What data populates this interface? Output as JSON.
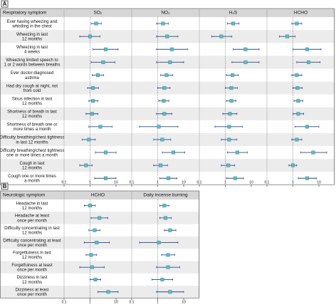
{
  "chart_data": [
    {
      "type": "forest",
      "panel_label": "A",
      "row_header": "Respiratory symptom",
      "categories": [
        "Ever having wheezing and\nwhistling in the chest",
        "Wheezing in last\n12 months",
        "Wheezing in last\n4 weeks",
        "Wheezing limited speech to\n1 or 2 words between breaths",
        "Ever doctor-diagnosed\nasthma",
        "Had dry cough at night, not\nfrom cold",
        "Sinus infection in last\n12 months",
        "Shortness of breath in last\n12 months",
        "Shortness of breath one or\nmore times a month",
        "Difficulty breathing/chest tightness\nin last 12 months",
        "Difficulty breathing/chest tightness\none or more times a month",
        "Cough in last\n12 months",
        "Cough one or more times\na month"
      ],
      "series": [
        {
          "name": "SO₂",
          "values": [
            1.7,
            1.0,
            4.0,
            3.2,
            2.0,
            1.3,
            1.3,
            1.2,
            2.5,
            0.9,
            4.0,
            0.7,
            4.0
          ],
          "lower": [
            1.1,
            0.4,
            1.3,
            1.1,
            1.2,
            0.8,
            0.9,
            0.7,
            0.9,
            0.5,
            1.6,
            0.4,
            1.5
          ],
          "upper": [
            2.7,
            2.4,
            12,
            9,
            3.3,
            2.1,
            2.0,
            2.0,
            7,
            1.6,
            10,
            1.2,
            10
          ]
        },
        {
          "name": "NO₂",
          "values": [
            1.6,
            2.3,
            3.5,
            3.0,
            2.2,
            1.8,
            1.7,
            1.8,
            1.1,
            1.5,
            4.0,
            1.3,
            2.6
          ],
          "lower": [
            0.9,
            0.9,
            0.9,
            0.9,
            1.3,
            1.0,
            1.1,
            0.9,
            0.2,
            0.7,
            1.5,
            0.7,
            1.2
          ],
          "upper": [
            2.6,
            6,
            14,
            10,
            3.8,
            3.0,
            2.7,
            3.5,
            6,
            3.2,
            11,
            2.4,
            5.5
          ]
        },
        {
          "name": "H₂S",
          "values": [
            2.0,
            0.7,
            6.0,
            6.0,
            1.9,
            1.7,
            1.7,
            1.5,
            1.4,
            1.4,
            2.9,
            1.3,
            2.4
          ],
          "lower": [
            1.2,
            0.3,
            2.0,
            1.8,
            1.1,
            1.0,
            1.1,
            0.8,
            0.4,
            0.7,
            1.2,
            0.7,
            1.1
          ],
          "upper": [
            3.4,
            1.8,
            20,
            20,
            3.2,
            2.9,
            2.6,
            2.8,
            4.5,
            2.8,
            7,
            2.3,
            5
          ]
        },
        {
          "name": "HCHO",
          "values": [
            1.4,
            0.6,
            3.5,
            4.0,
            1.4,
            1.5,
            1.6,
            1.6,
            3.5,
            1.4,
            6.0,
            1.0,
            3.5
          ],
          "lower": [
            0.9,
            0.3,
            1.0,
            1.4,
            0.9,
            1.0,
            1.1,
            1.0,
            1.2,
            0.9,
            2.0,
            0.7,
            1.6
          ],
          "upper": [
            2.2,
            1.2,
            12,
            11,
            2.2,
            2.3,
            2.4,
            2.6,
            10,
            2.2,
            20,
            1.4,
            8
          ]
        }
      ],
      "xlim": [
        0.1,
        40
      ],
      "xticks": [
        0.1,
        1,
        10
      ],
      "log_scale": true,
      "ref_line": 1,
      "marker_color": "#5bbcc8",
      "ci_color": "#2b4a80"
    },
    {
      "type": "forest",
      "panel_label": "B",
      "row_header": "Neurologic symptom",
      "categories": [
        "Headache in last\n12 months",
        "Headache at least\nonce per month",
        "Difficulty concentrating in last\n12 months",
        "Difficulty concentrating at least\nonce per month",
        "Forgetfulness in last\n12 months",
        "Forgetfulness at least\nonce per month",
        "Dizziness in last\n12 months",
        "Dizziness at least\nonce per month"
      ],
      "series": [
        {
          "name": "HCHO",
          "values": [
            1.0,
            2.3,
            1.5,
            1.8,
            1.1,
            1.2,
            1.6,
            5.0
          ],
          "lower": [
            0.6,
            1.1,
            0.9,
            0.6,
            0.7,
            0.4,
            1.0,
            2.0
          ],
          "upper": [
            1.6,
            4.8,
            2.4,
            5.5,
            1.8,
            3.5,
            2.6,
            12
          ]
        },
        {
          "name": "Daily incense burning",
          "values": [
            1.8,
            2.0,
            3.0,
            1.1,
            2.5,
            2.5,
            1.5,
            3.0
          ],
          "lower": [
            1.2,
            1.2,
            1.8,
            0.2,
            1.4,
            0.9,
            0.6,
            0.9
          ],
          "upper": [
            2.7,
            3.3,
            5.0,
            6,
            4.5,
            7,
            3.8,
            10
          ]
        }
      ],
      "xlim": [
        0.1,
        40
      ],
      "xticks": [
        0.1,
        1,
        10
      ],
      "log_scale": true,
      "ref_line": 1,
      "marker_color": "#5bbcc8",
      "ci_color": "#2b4a80"
    }
  ]
}
